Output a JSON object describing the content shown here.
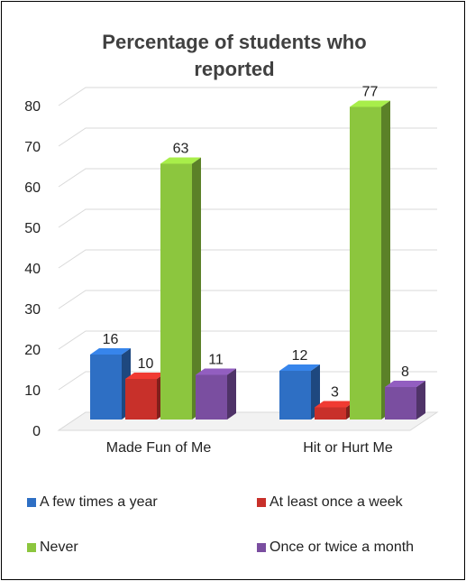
{
  "chart_data": {
    "type": "bar",
    "title": "Percentage of students who reported",
    "categories": [
      "Made Fun of Me",
      "Hit or Hurt Me"
    ],
    "series": [
      {
        "name": "A few times a year",
        "color": "#2e6fc4",
        "values": [
          16,
          12
        ]
      },
      {
        "name": "At least once a week",
        "color": "#c8302a",
        "values": [
          10,
          3
        ]
      },
      {
        "name": "Never",
        "color": "#8cc63e",
        "values": [
          63,
          77
        ]
      },
      {
        "name": "Once or twice a month",
        "color": "#7a4ea0",
        "values": [
          11,
          8
        ]
      }
    ],
    "ylim": [
      0,
      80
    ],
    "yticks": [
      0,
      10,
      20,
      30,
      40,
      50,
      60,
      70,
      80
    ],
    "grid": true,
    "legend": "bottom"
  }
}
